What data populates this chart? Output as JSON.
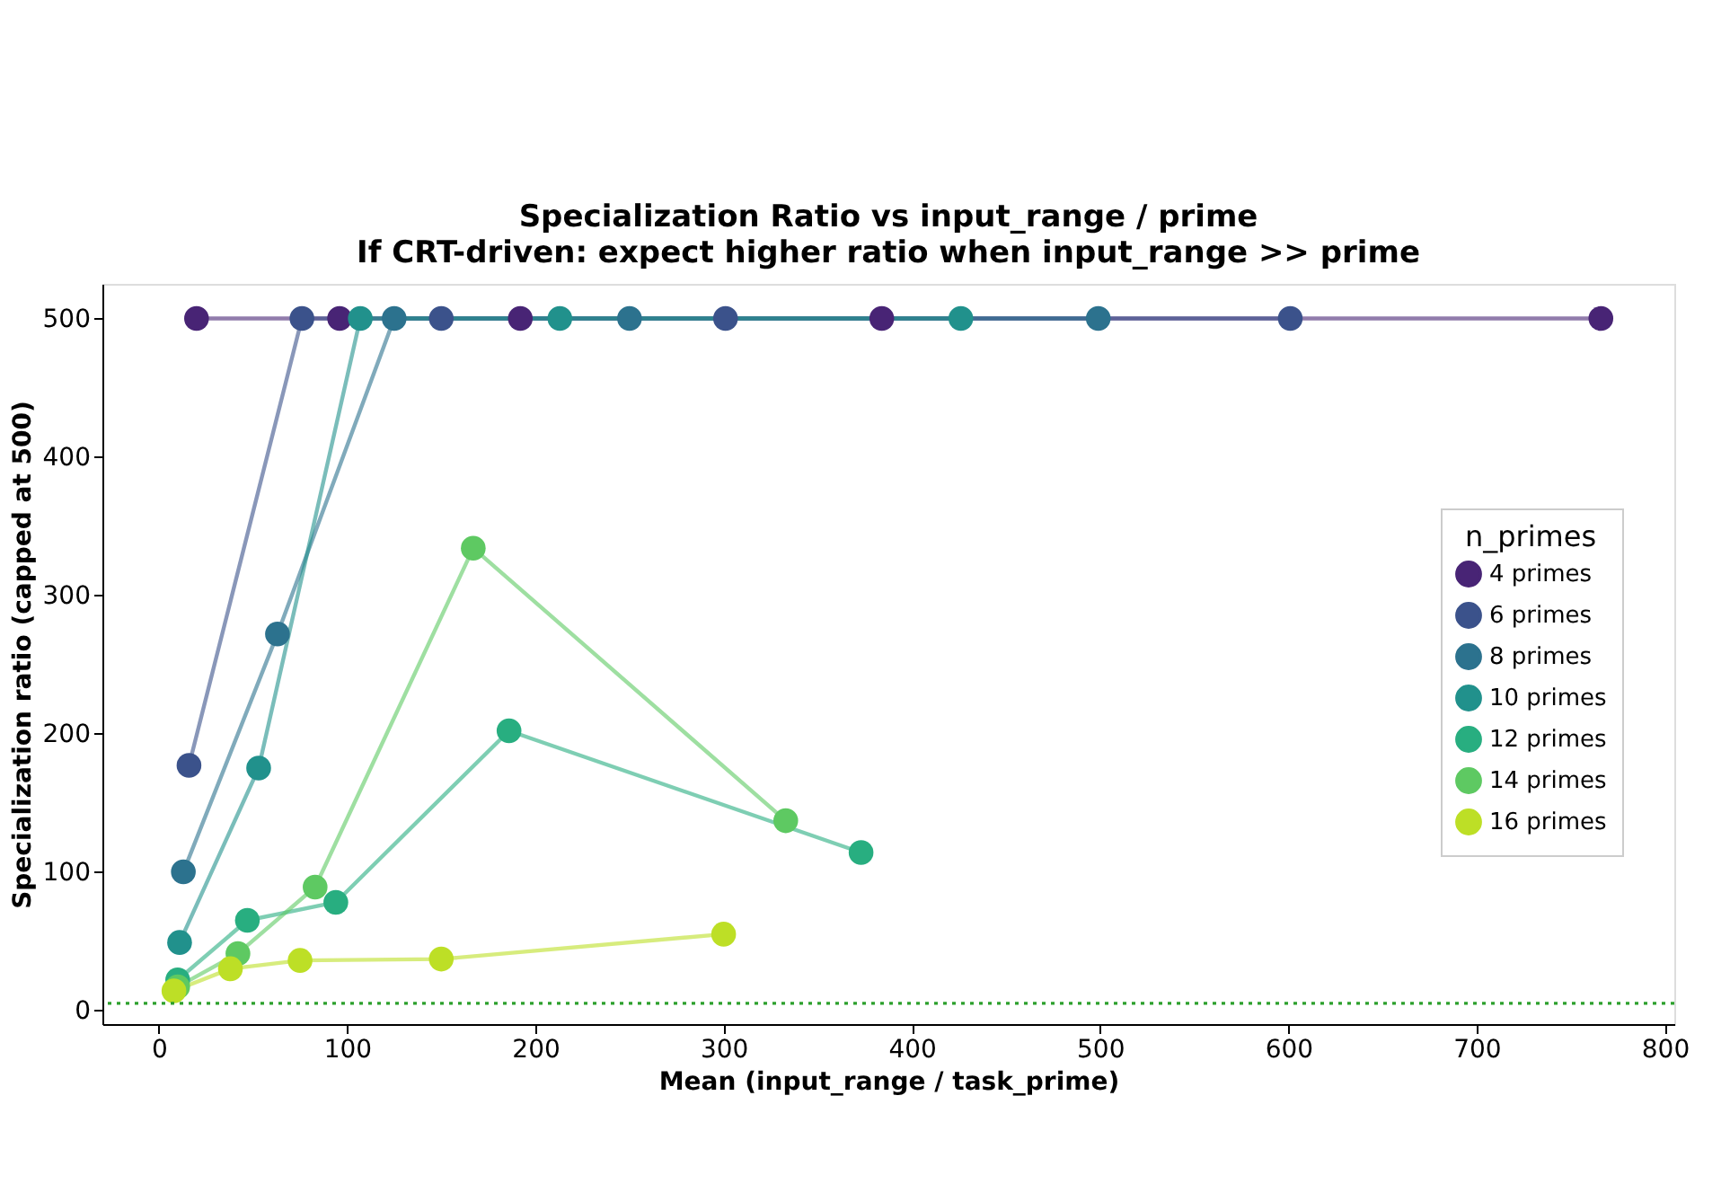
{
  "chart_data": {
    "type": "line",
    "title": "Specialization Ratio vs input_range / prime",
    "subtitle": "If CRT-driven: expect higher ratio when input_range >> prime",
    "xlabel": "Mean (input_range / task_prime)",
    "ylabel": "Specialization ratio (capped at 500)",
    "legend_title": "n_primes",
    "series": [
      {
        "name": "4 primes",
        "color": "#482475",
        "x": [
          20,
          96,
          192,
          384,
          766
        ],
        "values": [
          500,
          500,
          500,
          500,
          500
        ]
      },
      {
        "name": "6 primes",
        "color": "#3b528b",
        "x": [
          16,
          76,
          150,
          301,
          601
        ],
        "values": [
          177,
          500,
          500,
          500,
          500
        ]
      },
      {
        "name": "8 primes",
        "color": "#2c728e",
        "x": [
          13,
          63,
          125,
          250,
          499
        ],
        "values": [
          100,
          272,
          500,
          500,
          500
        ]
      },
      {
        "name": "10 primes",
        "color": "#21918c",
        "x": [
          11,
          53,
          107,
          213,
          426
        ],
        "values": [
          49,
          175,
          500,
          500,
          500
        ]
      },
      {
        "name": "12 primes",
        "color": "#28ae80",
        "x": [
          10,
          47,
          94,
          186,
          373
        ],
        "values": [
          22,
          65,
          78,
          202,
          114
        ]
      },
      {
        "name": "14 primes",
        "color": "#5ec962",
        "x": [
          10,
          42,
          83,
          167,
          333
        ],
        "values": [
          17,
          41,
          89,
          334,
          137
        ]
      },
      {
        "name": "16 primes",
        "color": "#bddf26",
        "x": [
          8,
          38,
          75,
          150,
          300
        ],
        "values": [
          14,
          30,
          36,
          37,
          55
        ]
      }
    ],
    "xlim": [
      -30,
      805
    ],
    "ylim": [
      -10,
      525
    ],
    "xticks": [
      0,
      100,
      200,
      300,
      400,
      500,
      600,
      700,
      800
    ],
    "yticks": [
      0,
      100,
      200,
      300,
      400,
      500
    ],
    "ref_lines": [
      {
        "axis": "y",
        "value": 5,
        "color": "#2ca02c",
        "line_style": "dotted"
      }
    ],
    "grid": false,
    "legend": "right",
    "marker": "circle",
    "line_style": "solid"
  }
}
